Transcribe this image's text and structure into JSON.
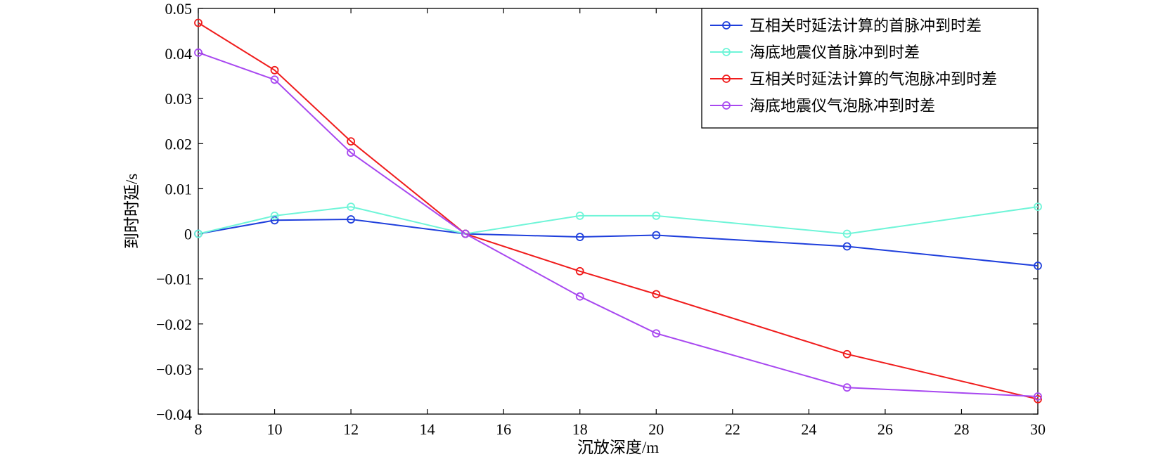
{
  "chart_data": {
    "type": "line",
    "xlabel": "沉放深度/m",
    "ylabel": "到时时延/s",
    "xlim": [
      8,
      30
    ],
    "ylim": [
      -0.04,
      0.05
    ],
    "x_ticks": [
      8,
      10,
      12,
      14,
      16,
      18,
      20,
      22,
      24,
      26,
      28,
      30
    ],
    "y_ticks": [
      0.05,
      0.04,
      0.03,
      0.02,
      0.01,
      0,
      -0.01,
      -0.02,
      -0.03,
      -0.04
    ],
    "x_tick_labels": [
      "8",
      "10",
      "12",
      "14",
      "16",
      "18",
      "20",
      "22",
      "24",
      "26",
      "28",
      "30"
    ],
    "y_tick_labels": [
      "0.05",
      "0.04",
      "0.03",
      "0.02",
      "0.01",
      "0",
      "−0.01",
      "−0.02",
      "−0.03",
      "−0.04"
    ],
    "grid": false,
    "legend_position": "top-right",
    "x": [
      8,
      10,
      12,
      15,
      18,
      20,
      25,
      30
    ],
    "series": [
      {
        "name": "互相关时延法计算的首脉冲到时差",
        "color": "#1f3fdc",
        "values": [
          0,
          0.003,
          0.0032,
          0,
          -0.0007,
          -0.0003,
          -0.0028,
          -0.0071
        ]
      },
      {
        "name": "海底地震仪首脉冲到时差",
        "color": "#6ff5d8",
        "values": [
          0,
          0.004,
          0.006,
          0,
          0.004,
          0.004,
          0,
          0.006
        ]
      },
      {
        "name": "互相关时延法计算的气泡脉冲到时差",
        "color": "#f01c1c",
        "values": [
          0.0468,
          0.0363,
          0.0205,
          0,
          -0.0083,
          -0.0134,
          -0.0267,
          -0.0367
        ]
      },
      {
        "name": "海底地震仪气泡脉冲到时差",
        "color": "#a848f0",
        "values": [
          0.0402,
          0.0342,
          0.018,
          0,
          -0.0139,
          -0.0221,
          -0.0341,
          -0.0361
        ]
      }
    ]
  }
}
